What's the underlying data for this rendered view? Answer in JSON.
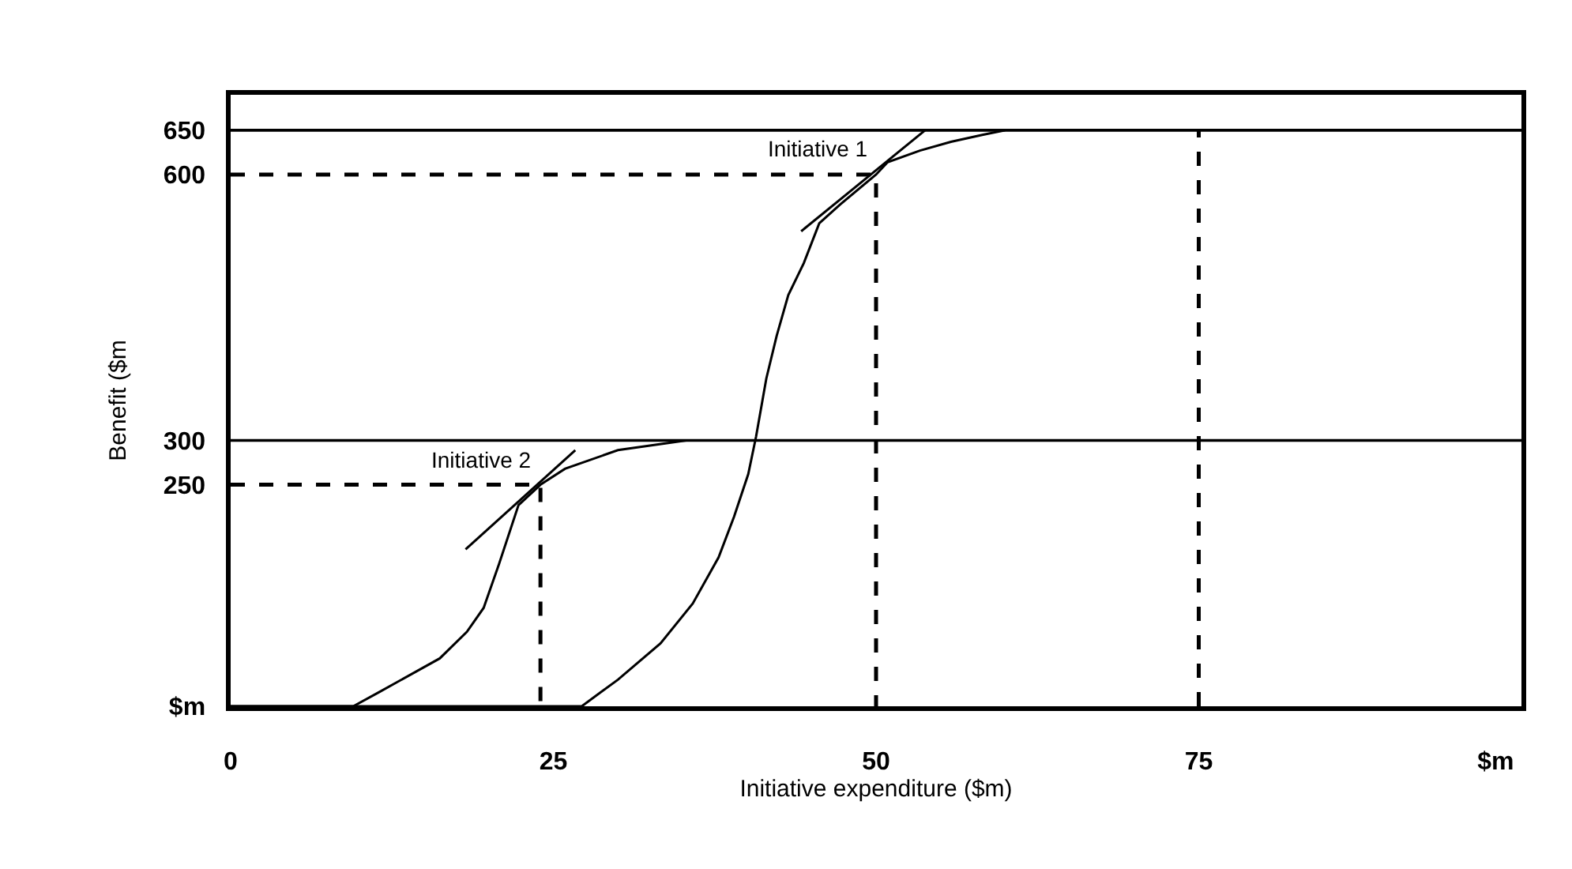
{
  "chart_data": {
    "type": "line",
    "xlabel": "Initiative expenditure ($m)",
    "ylabel": "Benefit ($m",
    "xlim": [
      0,
      100
    ],
    "ylim": [
      0,
      690
    ],
    "xticks": [
      0,
      25,
      50,
      75,
      {
        "value": 98,
        "label": "$m"
      }
    ],
    "yticks": [
      {
        "value": 0,
        "label": "$m"
      },
      250,
      300,
      600,
      650
    ],
    "grid": false,
    "legend": false,
    "marker": "none",
    "series": [
      {
        "name": "Initiative 2",
        "color": "#000000",
        "line_style": "solid",
        "x": [
          0,
          9.5,
          11.5,
          16.2,
          18.3,
          19.6,
          20.8,
          22.3,
          24,
          25.9,
          30,
          35.3
        ],
        "values": [
          0,
          0,
          16,
          54,
          84,
          111,
          161,
          227,
          250,
          268,
          289,
          300
        ]
      },
      {
        "name": "Initiative 1",
        "color": "#000000",
        "line_style": "solid",
        "x": [
          0,
          27.2,
          30,
          33.3,
          35.8,
          37.8,
          39,
          40.1,
          40.7,
          41.5,
          42.3,
          43.2,
          44.4,
          45.6,
          47.2,
          50,
          50.9,
          53.4,
          55.8,
          58.3,
          60
        ],
        "values": [
          0,
          0,
          30,
          71,
          116,
          168,
          214,
          262,
          304,
          370,
          418,
          464,
          500,
          545,
          566,
          600,
          614,
          627,
          637,
          645,
          650
        ]
      },
      {
        "color": "#000000",
        "line_style": "solid",
        "x": [
          18.2,
          26.7
        ],
        "values": [
          177,
          289
        ]
      },
      {
        "color": "#000000",
        "line_style": "solid",
        "x": [
          44.2,
          53.8
        ],
        "values": [
          536,
          650
        ]
      },
      {
        "color": "#000000",
        "line_style": "dashed",
        "x": [
          0,
          24,
          24
        ],
        "values": [
          250,
          250,
          0
        ]
      },
      {
        "color": "#000000",
        "line_style": "dashed",
        "x": [
          0,
          50,
          50
        ],
        "values": [
          600,
          600,
          0
        ]
      },
      {
        "color": "#000000",
        "line_style": "dashed",
        "x": [
          75,
          75
        ],
        "values": [
          0,
          650
        ]
      }
    ],
    "ref_lines": [
      {
        "axis": "y",
        "value": 300,
        "color": "#000000",
        "line_style": "solid"
      },
      {
        "axis": "y",
        "value": 650,
        "color": "#000000",
        "line_style": "solid"
      }
    ]
  }
}
